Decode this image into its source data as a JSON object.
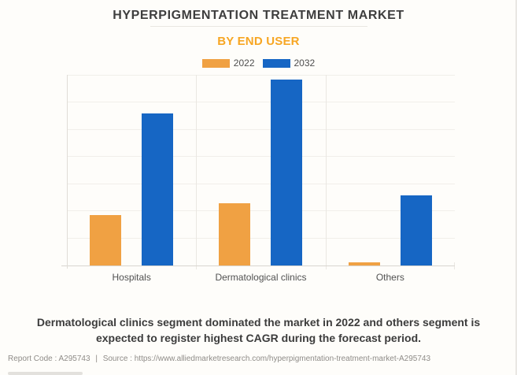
{
  "page": {
    "title": "HYPERPIGMENTATION TREATMENT MARKET",
    "subtitle": "BY END USER",
    "summary": "Dermatological clinics segment dominated the market in 2022 and others segment is expected to register highest CAGR during the forecast period.",
    "footer": {
      "report_code": "Report Code : A295743",
      "divider": "|",
      "source": "Source : https://www.alliedmarketresearch.com/hyperpigmentation-treatment-market-A295743"
    }
  },
  "colors": {
    "accent_orange": "#F7A623",
    "bar_2022": "#F0A143",
    "bar_2032": "#1666C4",
    "gridline": "#F1EFEA",
    "axis": "#D9D6D0",
    "title_text": "#3E3E3E",
    "label_text": "#515151",
    "footer_text": "#8F8C88"
  },
  "chart_data": {
    "type": "bar",
    "title": "HYPERPIGMENTATION TREATMENT MARKET",
    "subtitle": "BY END USER",
    "categories": [
      "Hospitals",
      "Dermatological clinics",
      "Others"
    ],
    "series": [
      {
        "name": "2022",
        "color": "#F0A143",
        "values": [
          1.84,
          2.29,
          0.13
        ]
      },
      {
        "name": "2032",
        "color": "#1666C4",
        "values": [
          5.57,
          6.82,
          2.57
        ]
      }
    ],
    "xlabel": "",
    "ylabel": "",
    "ylim": [
      0,
      7
    ],
    "y_axis_labels_shown": false,
    "grid": "horizontal",
    "gridline_count": 8,
    "legend_position": "top"
  }
}
